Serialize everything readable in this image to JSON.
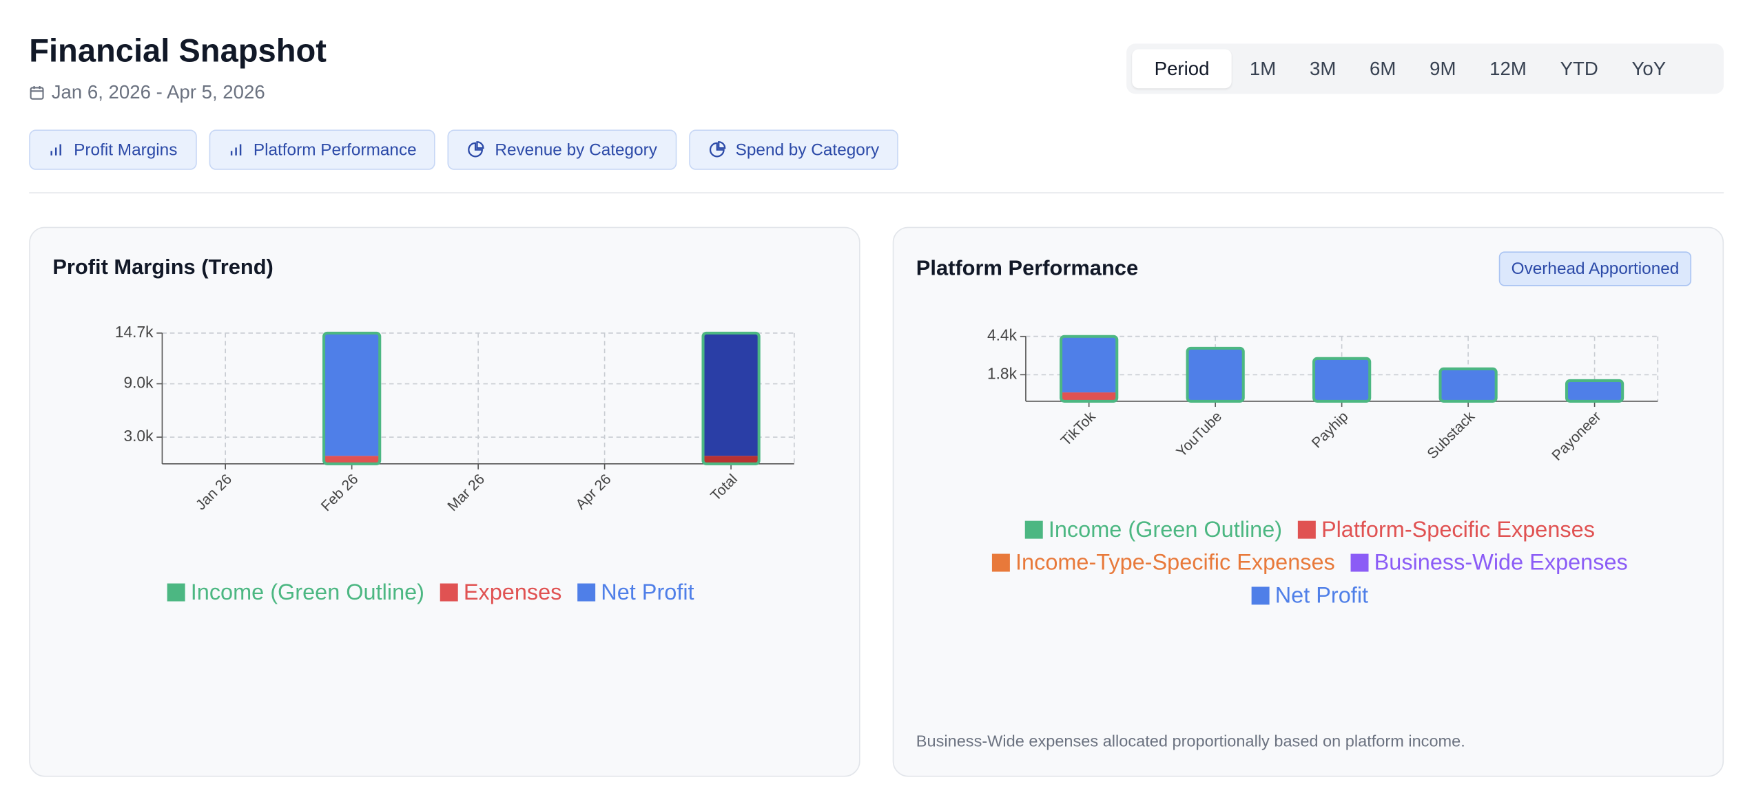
{
  "header": {
    "title": "Financial Snapshot",
    "date_range": "Jan 6, 2026 - Apr 5, 2026",
    "buttons": [
      "Profit Margins",
      "Platform Performance",
      "Revenue by Category",
      "Spend by Category"
    ],
    "periods": [
      "Period",
      "1M",
      "3M",
      "6M",
      "9M",
      "12M",
      "YTD",
      "YoY"
    ],
    "active_period": 0
  },
  "chart_data": [
    {
      "type": "bar",
      "title": "Profit Margins (Trend)",
      "categories": [
        "Jan 26",
        "Feb 26",
        "Mar 26",
        "Apr 26",
        "Total"
      ],
      "series": [
        {
          "name": "Income (Green Outline)",
          "color": "#4cb782",
          "style": "outline",
          "values": [
            0,
            14700,
            0,
            0,
            14700
          ]
        },
        {
          "name": "Expenses",
          "color": "#e05252",
          "total_color": "#b83232",
          "values": [
            0,
            900,
            0,
            0,
            900
          ]
        },
        {
          "name": "Net Profit",
          "color": "#4f7fe8",
          "total_color": "#2a3ea6",
          "values": [
            0,
            13800,
            0,
            0,
            13800
          ]
        }
      ],
      "highlight_last": true,
      "ylim": [
        0,
        14700
      ],
      "yticks": [
        {
          "value": 3000,
          "label": "3.0k"
        },
        {
          "value": 9000,
          "label": "9.0k"
        },
        {
          "value": 14700,
          "label": "14.7k"
        }
      ],
      "grid": true,
      "legend": "bottom"
    },
    {
      "type": "bar",
      "title": "Platform Performance",
      "badge": "Overhead Apportioned",
      "note": "Business-Wide expenses allocated proportionally based on platform income.",
      "categories": [
        "TikTok",
        "YouTube",
        "Payhip",
        "Substack",
        "Payoneer"
      ],
      "series": [
        {
          "name": "Income (Green Outline)",
          "color": "#4cb782",
          "style": "outline",
          "values": [
            4400,
            3600,
            2900,
            2200,
            1400
          ]
        },
        {
          "name": "Platform-Specific Expenses",
          "color": "#e05252",
          "values": [
            600,
            0,
            0,
            0,
            0
          ]
        },
        {
          "name": "Income-Type-Specific Expenses",
          "color": "#e8793a",
          "values": [
            0,
            0,
            0,
            0,
            0
          ]
        },
        {
          "name": "Business-Wide Expenses",
          "color": "#8b5cf6",
          "values": [
            0,
            0,
            0,
            0,
            0
          ]
        },
        {
          "name": "Net Profit",
          "color": "#4f7fe8",
          "values": [
            3800,
            3600,
            2900,
            2200,
            1400
          ]
        }
      ],
      "ylim": [
        0,
        4400
      ],
      "yticks": [
        {
          "value": 1800,
          "label": "1.8k"
        },
        {
          "value": 4400,
          "label": "4.4k"
        }
      ],
      "grid": true,
      "legend": "bottom"
    }
  ]
}
